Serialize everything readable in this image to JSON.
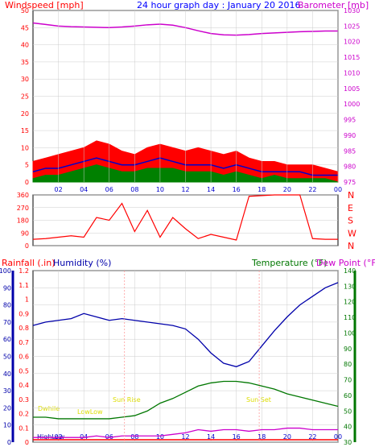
{
  "header": {
    "title": "24 hour graph day : January 20 2016",
    "left_label": "Windspeed [mph]",
    "right_label": "Barometer [mb]"
  },
  "colors": {
    "wind_gust": "#ff0000",
    "wind_avg": "#0000cc",
    "wind_low": "#008000",
    "barometer": "#cc00cc",
    "direction": "#ff0000",
    "rain": "#ff0000",
    "humidity": "#0000aa",
    "temperature": "#007700",
    "dewpoint": "#cc00cc",
    "sun_label": "#dddd00",
    "grid": "#cccccc"
  },
  "time_ticks": [
    "02",
    "04",
    "06",
    "08",
    "10",
    "12",
    "14",
    "16",
    "18",
    "20",
    "22",
    "00"
  ],
  "bottom_labels": {
    "highlow": "HighLow",
    "sunrise_small": "Sun Rise",
    "low_left": "Dwhile",
    "low_mid": "LowLow",
    "sunrise": "Sun Rise",
    "sunset": "Sun Set"
  },
  "chart_data": [
    {
      "type": "line",
      "name": "wind-panel",
      "left_axis_label": "Windspeed [mph]",
      "right_axis_label": "Barometer [mb]",
      "yleft_ticks": [
        "0",
        "5",
        "10",
        "15",
        "20",
        "25",
        "30",
        "35",
        "40",
        "45",
        "50"
      ],
      "yright_ticks": [
        "975",
        "980",
        "985",
        "990",
        "995",
        "1000",
        "1005",
        "1010",
        "1015",
        "1020",
        "1025",
        "1030"
      ],
      "ylim_left": [
        0,
        50
      ],
      "ylim_right": [
        975,
        1030
      ],
      "x": [
        0,
        1,
        2,
        3,
        4,
        5,
        6,
        7,
        8,
        9,
        10,
        11,
        12,
        13,
        14,
        15,
        16,
        17,
        18,
        19,
        20,
        21,
        22,
        23,
        24
      ],
      "series": [
        {
          "name": "gust",
          "values": [
            6,
            7,
            8,
            9,
            10,
            12,
            11,
            9,
            8,
            10,
            11,
            10,
            9,
            10,
            9,
            8,
            9,
            7,
            6,
            6,
            5,
            5,
            5,
            4,
            3
          ]
        },
        {
          "name": "avg",
          "values": [
            3,
            4,
            4,
            5,
            6,
            7,
            6,
            5,
            5,
            6,
            7,
            6,
            5,
            5,
            5,
            4,
            5,
            4,
            3,
            3,
            3,
            3,
            2,
            2,
            2
          ]
        },
        {
          "name": "low",
          "values": [
            1,
            2,
            2,
            3,
            4,
            5,
            4,
            3,
            3,
            4,
            4,
            4,
            3,
            3,
            3,
            2,
            3,
            2,
            1,
            2,
            1,
            1,
            1,
            1,
            0
          ]
        },
        {
          "name": "barometer",
          "values": [
            1026,
            1025.5,
            1025,
            1024.8,
            1024.7,
            1024.6,
            1024.5,
            1024.7,
            1025,
            1025.4,
            1025.6,
            1025.3,
            1024.5,
            1023.5,
            1022.6,
            1022.2,
            1022.1,
            1022.3,
            1022.6,
            1022.8,
            1023,
            1023.2,
            1023.3,
            1023.4,
            1023.4
          ]
        }
      ]
    },
    {
      "type": "line",
      "name": "direction-panel",
      "yleft_ticks": [
        "0",
        "90",
        "180",
        "270",
        "360"
      ],
      "compass": [
        "N",
        "W",
        "S",
        "E",
        "N"
      ],
      "ylim": [
        0,
        360
      ],
      "x": [
        0,
        1,
        2,
        3,
        4,
        5,
        6,
        7,
        8,
        9,
        10,
        11,
        12,
        13,
        14,
        15,
        16,
        17,
        18,
        19,
        20,
        21,
        22,
        23,
        24
      ],
      "series": [
        {
          "name": "direction",
          "values": [
            45,
            50,
            60,
            70,
            60,
            200,
            180,
            300,
            100,
            250,
            60,
            200,
            120,
            50,
            80,
            60,
            40,
            350,
            355,
            360,
            360,
            360,
            50,
            45,
            45
          ]
        }
      ]
    },
    {
      "type": "line",
      "name": "weather-panel",
      "left_axis_labels": [
        "Rainfall (.in)",
        "Humidity (%)"
      ],
      "right_axis_labels": [
        "Temperature (°F)",
        "Dew Point (°F)"
      ],
      "humidity_ticks": [
        "0",
        "10",
        "20",
        "30",
        "40",
        "50",
        "60",
        "70",
        "80",
        "90",
        "100"
      ],
      "rain_ticks": [
        "0",
        "0.1",
        "0.2",
        "0.3",
        "0.4",
        "0.5",
        "0.6",
        "0.7",
        "0.8",
        "0.9",
        "1",
        "1.1",
        "1.2"
      ],
      "temp_ticks": [
        "30",
        "40",
        "50",
        "60",
        "70",
        "80",
        "90",
        "100",
        "110",
        "120",
        "130",
        "140"
      ],
      "ylim_humidity": [
        0,
        100
      ],
      "ylim_temp": [
        30,
        140
      ],
      "x": [
        0,
        1,
        2,
        3,
        4,
        5,
        6,
        7,
        8,
        9,
        10,
        11,
        12,
        13,
        14,
        15,
        16,
        17,
        18,
        19,
        20,
        21,
        22,
        23,
        24
      ],
      "series": [
        {
          "name": "humidity",
          "values": [
            68,
            70,
            71,
            72,
            75,
            73,
            71,
            72,
            71,
            70,
            69,
            68,
            66,
            60,
            52,
            46,
            44,
            47,
            56,
            65,
            73,
            80,
            85,
            90,
            93
          ]
        },
        {
          "name": "temperature",
          "values": [
            46,
            46,
            45,
            45,
            45,
            45,
            45,
            46,
            47,
            50,
            55,
            58,
            62,
            66,
            68,
            69,
            69,
            68,
            66,
            64,
            61,
            59,
            57,
            55,
            53
          ]
        },
        {
          "name": "dewpoint",
          "values": [
            33,
            33,
            33,
            33,
            33,
            34,
            33,
            34,
            34,
            34,
            34,
            35,
            36,
            38,
            37,
            38,
            38,
            37,
            38,
            38,
            39,
            39,
            38,
            38,
            38
          ]
        },
        {
          "name": "rain",
          "values": [
            0,
            0,
            0,
            0,
            0,
            0,
            0,
            0,
            0,
            0,
            0,
            0,
            0,
            0,
            0,
            0,
            0,
            0,
            0,
            0,
            0,
            0,
            0,
            0,
            0
          ]
        }
      ]
    }
  ]
}
